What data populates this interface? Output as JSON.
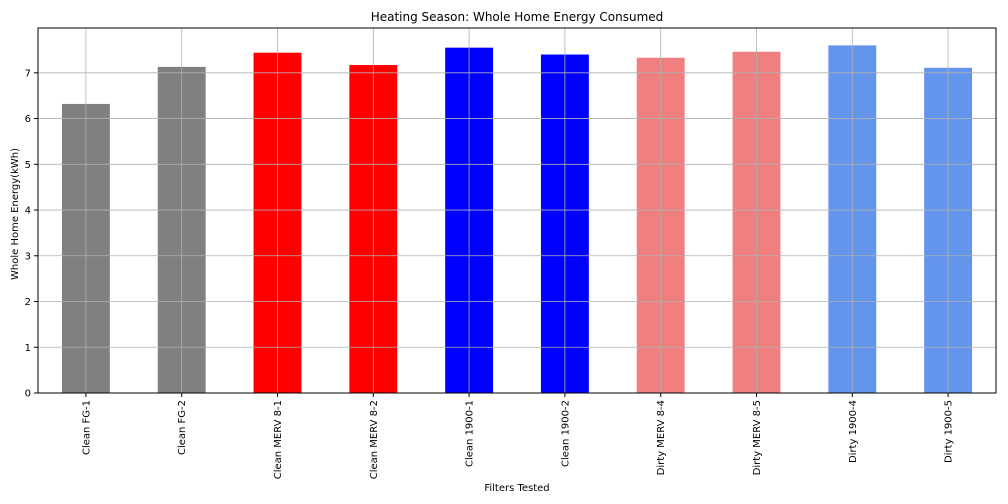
{
  "chart_data": {
    "type": "bar",
    "title": "Heating Season: Whole Home Energy Consumed",
    "xlabel": "Filters Tested",
    "ylabel": "Whole Home Energy(kWh)",
    "categories": [
      "Clean FG-1",
      "Clean FG-2",
      "Clean MERV 8-1",
      "Clean MERV 8-2",
      "Clean 1900-1",
      "Clean 1900-2",
      "Dirty MERV 8-4",
      "Dirty MERV 8-5",
      "Dirty 1900-4",
      "Dirty 1900-5"
    ],
    "values": [
      6.32,
      7.13,
      7.44,
      7.17,
      7.55,
      7.4,
      7.33,
      7.46,
      7.6,
      7.11
    ],
    "colors": [
      "#808080",
      "#808080",
      "#ff0000",
      "#ff0000",
      "#0000ff",
      "#0000ff",
      "#f08080",
      "#f08080",
      "#6495ed",
      "#6495ed"
    ],
    "ylim": [
      0,
      7.98
    ],
    "yticks": [
      0,
      1,
      2,
      3,
      4,
      5,
      6,
      7
    ],
    "grid": true
  }
}
